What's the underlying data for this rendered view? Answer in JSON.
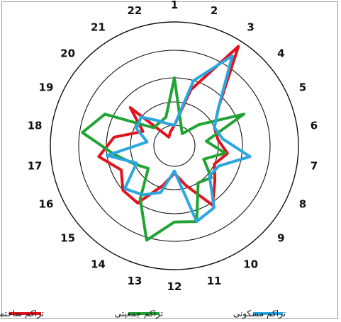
{
  "chart_data": {
    "type": "radar",
    "title": "",
    "categories": [
      "1",
      "2",
      "3",
      "4",
      "5",
      "6",
      "7",
      "8",
      "9",
      "10",
      "11",
      "12",
      "13",
      "14",
      "15",
      "16",
      "17",
      "18",
      "19",
      "20",
      "21",
      "22"
    ],
    "axis_range": [
      0,
      5
    ],
    "rings": [
      1,
      2,
      3,
      4,
      5
    ],
    "grid": true,
    "legend_position": "bottom",
    "series": [
      {
        "name": "تراکم ساختمانی",
        "color": "#e0141e",
        "values": [
          1.0,
          2.6,
          4.8,
          2.6,
          2.0,
          2.0,
          2.4,
          2.0,
          2.4,
          3.1,
          1.9,
          1.3,
          1.9,
          3.0,
          3.0,
          2.6,
          3.3,
          2.7,
          1.6,
          2.6,
          0.5,
          0.7
        ]
      },
      {
        "name": "تراکم جمعیتی",
        "color": "#22a335",
        "values": [
          3.0,
          1.1,
          0.7,
          1.5,
          3.3,
          1.5,
          2.3,
          1.5,
          2.2,
          2.0,
          3.4,
          3.3,
          4.1,
          2.8,
          1.6,
          2.0,
          2.7,
          3.9,
          3.3,
          1.3,
          1.3,
          1.4
        ]
      },
      {
        "name": "تراکم مسکونی",
        "color": "#2aa7e0",
        "values": [
          1.0,
          3.0,
          4.4,
          2.6,
          2.0,
          2.2,
          3.3,
          2.2,
          2.1,
          3.2,
          3.4,
          1.2,
          2.2,
          2.6,
          2.9,
          1.9,
          3.0,
          1.3,
          1.9,
          2.0,
          1.4,
          1.1
        ]
      }
    ]
  }
}
